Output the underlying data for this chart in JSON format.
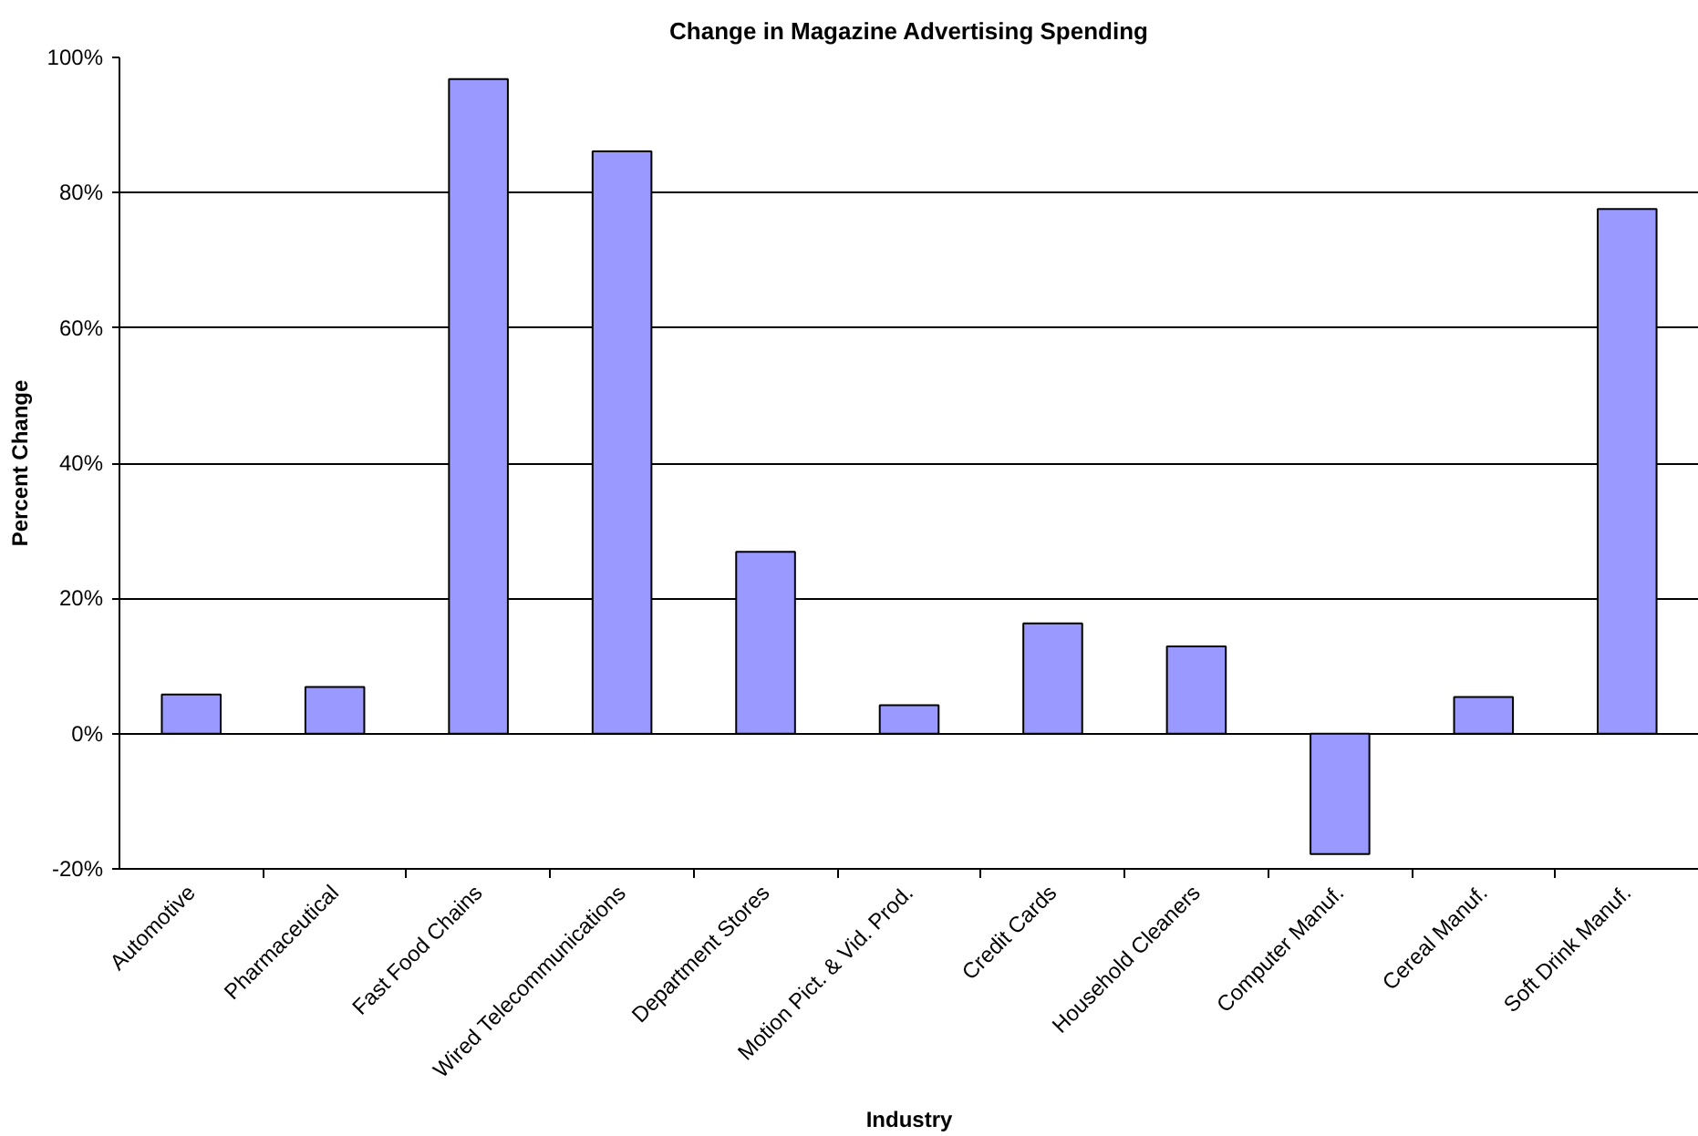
{
  "chart_data": {
    "type": "bar",
    "title": "Change in Magazine Advertising Spending",
    "xlabel": "Industry",
    "ylabel": "Percent Change",
    "categories": [
      "Automotive",
      "Pharmaceutical",
      "Fast Food Chains",
      "Wired Telecommunications",
      "Department Stores",
      "Motion Pict. & Vid. Prod.",
      "Credit Cards",
      "Household Cleaners",
      "Computer Manuf.",
      "Cereal Manuf.",
      "Soft Drink Manuf."
    ],
    "values": [
      5.8,
      6.9,
      96.8,
      86.1,
      26.9,
      4.2,
      16.3,
      12.9,
      -17.8,
      5.4,
      77.6
    ],
    "color": "#9999ff",
    "ylim": [
      -20,
      100
    ],
    "yticks": [
      {
        "value": -20,
        "label": "-20%"
      },
      {
        "value": 0,
        "label": "0%"
      },
      {
        "value": 20,
        "label": "20%"
      },
      {
        "value": 40,
        "label": "40%"
      },
      {
        "value": 60,
        "label": "60%"
      },
      {
        "value": 80,
        "label": "80%"
      },
      {
        "value": 100,
        "label": "100%"
      }
    ],
    "grid": "y"
  }
}
